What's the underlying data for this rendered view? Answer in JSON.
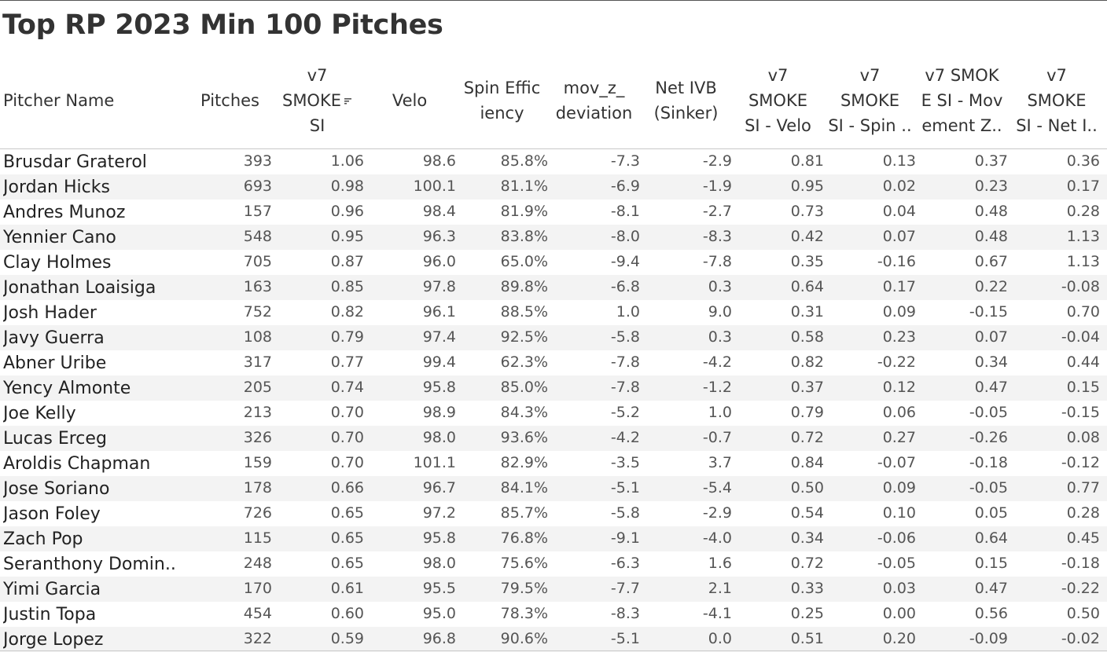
{
  "title": "Top RP 2023 Min 100 Pitches",
  "colors": {
    "text": "#333333",
    "value_text": "#555555",
    "band": "#f3f3f3"
  },
  "sort_icon": "sort-descending-icon",
  "chart_data": {
    "type": "table",
    "title": "Top RP 2023 Min 100 Pitches",
    "columns": [
      "Pitcher Name",
      "Pitches",
      "v7\nSMOKE\nSI",
      "Velo",
      "Spin Effic\niency",
      "mov_z_\ndeviation",
      "Net IVB\n(Sinker)",
      "v7\nSMOKE\nSI - Velo",
      "v7\nSMOKE\nSI - Spin ..",
      "v7 SMOK\nE SI - Mov\nement Z..",
      "v7\nSMOKE\nSI - Net I.."
    ],
    "sorted_column": "v7 SMOKE SI",
    "sort_order": "descending",
    "rows": [
      [
        "Brusdar Graterol",
        "393",
        "1.06",
        "98.6",
        "85.8%",
        "-7.3",
        "-2.9",
        "0.81",
        "0.13",
        "0.37",
        "0.36"
      ],
      [
        "Jordan Hicks",
        "693",
        "0.98",
        "100.1",
        "81.1%",
        "-6.9",
        "-1.9",
        "0.95",
        "0.02",
        "0.23",
        "0.17"
      ],
      [
        "Andres Munoz",
        "157",
        "0.96",
        "98.4",
        "81.9%",
        "-8.1",
        "-2.7",
        "0.73",
        "0.04",
        "0.48",
        "0.28"
      ],
      [
        "Yennier Cano",
        "548",
        "0.95",
        "96.3",
        "83.8%",
        "-8.0",
        "-8.3",
        "0.42",
        "0.07",
        "0.48",
        "1.13"
      ],
      [
        "Clay Holmes",
        "705",
        "0.87",
        "96.0",
        "65.0%",
        "-9.4",
        "-7.8",
        "0.35",
        "-0.16",
        "0.67",
        "1.13"
      ],
      [
        "Jonathan Loaisiga",
        "163",
        "0.85",
        "97.8",
        "89.8%",
        "-6.8",
        "0.3",
        "0.64",
        "0.17",
        "0.22",
        "-0.08"
      ],
      [
        "Josh Hader",
        "752",
        "0.82",
        "96.1",
        "88.5%",
        "1.0",
        "9.0",
        "0.31",
        "0.09",
        "-0.15",
        "0.70"
      ],
      [
        "Javy Guerra",
        "108",
        "0.79",
        "97.4",
        "92.5%",
        "-5.8",
        "0.3",
        "0.58",
        "0.23",
        "0.07",
        "-0.04"
      ],
      [
        "Abner Uribe",
        "317",
        "0.77",
        "99.4",
        "62.3%",
        "-7.8",
        "-4.2",
        "0.82",
        "-0.22",
        "0.34",
        "0.44"
      ],
      [
        "Yency Almonte",
        "205",
        "0.74",
        "95.8",
        "85.0%",
        "-7.8",
        "-1.2",
        "0.37",
        "0.12",
        "0.47",
        "0.15"
      ],
      [
        "Joe Kelly",
        "213",
        "0.70",
        "98.9",
        "84.3%",
        "-5.2",
        "1.0",
        "0.79",
        "0.06",
        "-0.05",
        "-0.15"
      ],
      [
        "Lucas Erceg",
        "326",
        "0.70",
        "98.0",
        "93.6%",
        "-4.2",
        "-0.7",
        "0.72",
        "0.27",
        "-0.26",
        "0.08"
      ],
      [
        "Aroldis Chapman",
        "159",
        "0.70",
        "101.1",
        "82.9%",
        "-3.5",
        "3.7",
        "0.84",
        "-0.07",
        "-0.18",
        "-0.12"
      ],
      [
        "Jose Soriano",
        "178",
        "0.66",
        "96.7",
        "84.1%",
        "-5.1",
        "-5.4",
        "0.50",
        "0.09",
        "-0.05",
        "0.77"
      ],
      [
        "Jason Foley",
        "726",
        "0.65",
        "97.2",
        "85.7%",
        "-5.8",
        "-2.9",
        "0.54",
        "0.10",
        "0.05",
        "0.28"
      ],
      [
        "Zach Pop",
        "115",
        "0.65",
        "95.8",
        "76.8%",
        "-9.1",
        "-4.0",
        "0.34",
        "-0.06",
        "0.64",
        "0.45"
      ],
      [
        "Seranthony Domin..",
        "248",
        "0.65",
        "98.0",
        "75.6%",
        "-6.3",
        "1.6",
        "0.72",
        "-0.05",
        "0.15",
        "-0.18"
      ],
      [
        "Yimi Garcia",
        "170",
        "0.61",
        "95.5",
        "79.5%",
        "-7.7",
        "2.1",
        "0.33",
        "0.03",
        "0.47",
        "-0.22"
      ],
      [
        "Justin Topa",
        "454",
        "0.60",
        "95.0",
        "78.3%",
        "-8.3",
        "-4.1",
        "0.25",
        "0.00",
        "0.56",
        "0.50"
      ],
      [
        "Jorge Lopez",
        "322",
        "0.59",
        "96.8",
        "90.6%",
        "-5.1",
        "0.0",
        "0.51",
        "0.20",
        "-0.09",
        "-0.02"
      ]
    ]
  }
}
